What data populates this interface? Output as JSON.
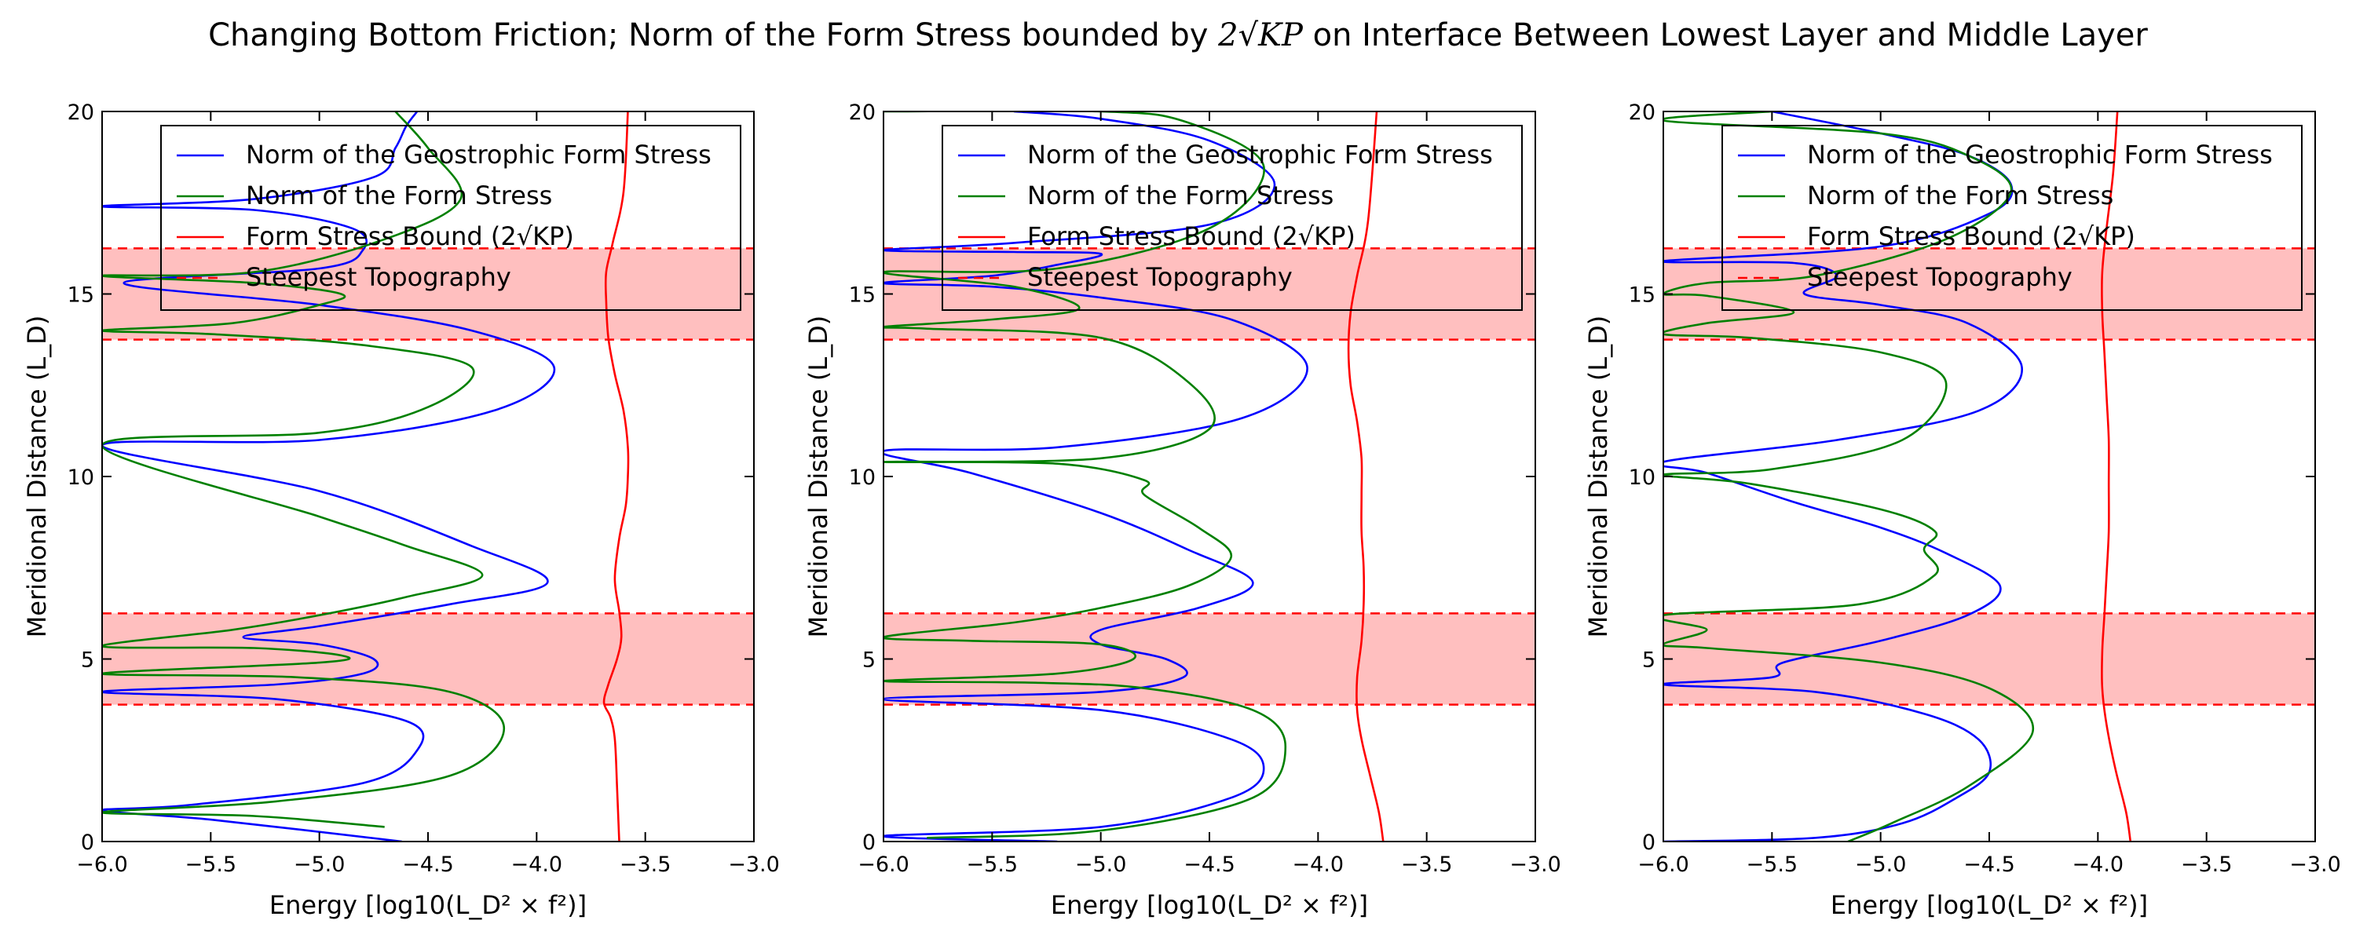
{
  "figure": {
    "title_prefix": "Changing Bottom Friction; Norm of the Form Stress bounded by ",
    "title_math": "2√KP",
    "title_suffix": " on Interface Between Lowest Layer and Middle Layer"
  },
  "colors": {
    "geostrophic": "#0000ff",
    "form_stress": "#008000",
    "bound": "#ff0000",
    "band_fill": "#ffbfbf",
    "band_edge": "#ff0000"
  },
  "chart_data": [
    {
      "type": "line",
      "title": "",
      "xlabel": "Energy [log10(L_D² × f²)]",
      "ylabel": "Meridional Distance (L_D)",
      "xlim": [
        -6.0,
        -3.0
      ],
      "ylim": [
        0,
        20
      ],
      "xticks": [
        -6.0,
        -5.5,
        -5.0,
        -4.5,
        -4.0,
        -3.5,
        -3.0
      ],
      "xtick_labels": [
        "−6.0",
        "−5.5",
        "−5.0",
        "−4.5",
        "−4.0",
        "−3.5",
        "−3.0"
      ],
      "yticks": [
        0,
        5,
        10,
        15,
        20
      ],
      "ytick_labels": [
        "0",
        "5",
        "10",
        "15",
        "20"
      ],
      "grid": false,
      "legend_position": "top-right",
      "legend": [
        "Norm of the Geostrophic Form Stress",
        "Norm of the Form Stress",
        "Form Stress Bound (2√KP)",
        "Steepest Topography"
      ],
      "bands": [
        [
          3.75,
          6.25
        ],
        [
          13.75,
          16.25
        ]
      ],
      "series": [
        {
          "name": "Norm of the Geostrophic Form Stress",
          "color": "#0000ff",
          "x": [
            -4.62,
            -5.5,
            -6.0,
            -5.6,
            -4.8,
            -4.55,
            -4.6,
            -5.2,
            -6.0,
            -5.2,
            -4.8,
            -4.75,
            -5.0,
            -5.35,
            -5.0,
            -4.4,
            -3.95,
            -4.3,
            -5.0,
            -6.0,
            -5.0,
            -4.2,
            -3.92,
            -4.3,
            -5.0,
            -5.9,
            -5.0,
            -4.8,
            -4.85,
            -5.3,
            -6.0,
            -5.3,
            -4.75,
            -4.65,
            -4.6,
            -4.55
          ],
          "y": [
            0.0,
            0.6,
            0.85,
            1.0,
            1.6,
            2.5,
            3.3,
            3.9,
            4.1,
            4.3,
            4.6,
            5.0,
            5.4,
            5.6,
            5.9,
            6.5,
            7.1,
            8.1,
            9.6,
            10.85,
            11.0,
            11.8,
            13.0,
            14.0,
            14.7,
            15.3,
            15.7,
            16.2,
            16.8,
            17.3,
            17.4,
            17.6,
            18.2,
            19.0,
            19.6,
            20.0
          ]
        },
        {
          "name": "Norm of the Form Stress",
          "color": "#008000",
          "x": [
            -4.7,
            -5.3,
            -6.0,
            -5.2,
            -4.4,
            -4.15,
            -4.4,
            -5.1,
            -6.0,
            -5.0,
            -4.9,
            -5.3,
            -6.0,
            -5.4,
            -5.0,
            -4.6,
            -4.25,
            -4.6,
            -5.0,
            -6.0,
            -5.0,
            -4.5,
            -4.3,
            -4.8,
            -5.5,
            -6.0,
            -5.4,
            -5.0,
            -4.9,
            -5.3,
            -6.0,
            -5.3,
            -4.7,
            -4.35,
            -4.5,
            -4.65
          ],
          "y": [
            0.4,
            0.7,
            0.8,
            1.1,
            1.8,
            3.1,
            4.1,
            4.5,
            4.6,
            4.9,
            5.1,
            5.3,
            5.35,
            5.8,
            6.2,
            6.7,
            7.3,
            8.1,
            8.9,
            10.85,
            11.2,
            11.9,
            13.0,
            13.6,
            13.9,
            14.0,
            14.2,
            14.7,
            15.0,
            15.3,
            15.5,
            15.6,
            16.5,
            17.6,
            19.0,
            20.0
          ]
        },
        {
          "name": "Form Stress Bound (2√KP)",
          "color": "#ff0000",
          "x": [
            -3.62,
            -3.63,
            -3.64,
            -3.66,
            -3.69,
            -3.67,
            -3.63,
            -3.61,
            -3.62,
            -3.64,
            -3.62,
            -3.59,
            -3.58,
            -3.58,
            -3.6,
            -3.64,
            -3.67,
            -3.68,
            -3.68,
            -3.65,
            -3.6,
            -3.58
          ],
          "y": [
            0.0,
            1.5,
            2.8,
            3.4,
            3.8,
            4.3,
            5.0,
            5.6,
            6.3,
            7.2,
            8.3,
            9.2,
            10.0,
            10.8,
            11.8,
            12.8,
            13.8,
            14.8,
            15.6,
            16.4,
            17.8,
            20.0
          ]
        }
      ]
    },
    {
      "type": "line",
      "title": "",
      "xlabel": "Energy [log10(L_D² × f²)]",
      "ylabel": "Meridional Distance (L_D)",
      "xlim": [
        -6.0,
        -3.0
      ],
      "ylim": [
        0,
        20
      ],
      "xticks": [
        -6.0,
        -5.5,
        -5.0,
        -4.5,
        -4.0,
        -3.5,
        -3.0
      ],
      "xtick_labels": [
        "−6.0",
        "−5.5",
        "−5.0",
        "−4.5",
        "−4.0",
        "−3.5",
        "−3.0"
      ],
      "yticks": [
        0,
        5,
        10,
        15,
        20
      ],
      "ytick_labels": [
        "0",
        "5",
        "10",
        "15",
        "20"
      ],
      "grid": false,
      "legend_position": "top-right",
      "legend": [
        "Norm of the Geostrophic Form Stress",
        "Norm of the Form Stress",
        "Form Stress Bound (2√KP)",
        "Steepest Topography"
      ],
      "bands": [
        [
          3.75,
          6.25
        ],
        [
          13.75,
          16.25
        ]
      ],
      "series": [
        {
          "name": "Norm of the Geostrophic Form Stress",
          "color": "#0000ff",
          "x": [
            -5.2,
            -6.0,
            -5.0,
            -4.4,
            -4.25,
            -4.4,
            -5.0,
            -6.0,
            -5.0,
            -4.62,
            -4.7,
            -5.0,
            -5.0,
            -4.55,
            -4.3,
            -4.6,
            -5.0,
            -5.6,
            -6.0,
            -5.2,
            -4.35,
            -4.05,
            -4.4,
            -5.0,
            -5.5,
            -6.0,
            -5.5,
            -5.2,
            -5.0,
            -5.4,
            -6.0,
            -5.4,
            -4.5,
            -4.2,
            -4.5,
            -5.0,
            -5.4
          ],
          "y": [
            0.0,
            0.15,
            0.4,
            1.2,
            2.0,
            2.8,
            3.6,
            3.9,
            4.1,
            4.5,
            5.0,
            5.4,
            5.8,
            6.4,
            7.1,
            8.0,
            9.0,
            10.1,
            10.7,
            10.8,
            11.6,
            13.0,
            14.3,
            14.9,
            15.2,
            15.3,
            15.5,
            15.8,
            16.1,
            16.15,
            16.2,
            16.4,
            16.9,
            18.0,
            19.2,
            19.8,
            20.0
          ]
        },
        {
          "name": "Norm of the Form Stress",
          "color": "#008000",
          "x": [
            -5.8,
            -5.0,
            -4.3,
            -4.15,
            -4.3,
            -4.8,
            -5.3,
            -6.0,
            -5.2,
            -4.85,
            -5.0,
            -5.6,
            -6.0,
            -5.4,
            -5.0,
            -4.6,
            -4.4,
            -4.55,
            -4.8,
            -4.8,
            -5.2,
            -6.0,
            -5.0,
            -4.5,
            -4.6,
            -5.0,
            -5.8,
            -6.0,
            -5.5,
            -5.1,
            -5.4,
            -6.0,
            -5.2,
            -4.5,
            -4.25,
            -4.6,
            -5.0,
            -6.0
          ],
          "y": [
            0.1,
            0.3,
            1.2,
            2.6,
            3.6,
            4.2,
            4.35,
            4.4,
            4.6,
            5.0,
            5.4,
            5.5,
            5.6,
            6.0,
            6.4,
            7.0,
            7.8,
            8.6,
            9.5,
            9.9,
            10.35,
            10.4,
            10.5,
            11.3,
            12.6,
            13.8,
            14.05,
            14.1,
            14.3,
            14.6,
            15.2,
            15.6,
            15.7,
            16.8,
            18.5,
            19.7,
            20.0,
            20.0
          ]
        },
        {
          "name": "Form Stress Bound (2√KP)",
          "color": "#ff0000",
          "x": [
            -3.7,
            -3.72,
            -3.76,
            -3.8,
            -3.82,
            -3.82,
            -3.8,
            -3.79,
            -3.79,
            -3.8,
            -3.8,
            -3.8,
            -3.82,
            -3.85,
            -3.86,
            -3.85,
            -3.82,
            -3.77,
            -3.73
          ],
          "y": [
            0.0,
            0.8,
            1.8,
            2.8,
            3.6,
            4.5,
            5.5,
            6.5,
            7.5,
            8.5,
            9.5,
            10.5,
            11.5,
            12.5,
            13.5,
            14.5,
            15.5,
            17.0,
            20.0
          ]
        }
      ]
    },
    {
      "type": "line",
      "title": "",
      "xlabel": "Energy [log10(L_D² × f²)]",
      "ylabel": "Meridional Distance (L_D)",
      "xlim": [
        -6.0,
        -3.0
      ],
      "ylim": [
        0,
        20
      ],
      "xticks": [
        -6.0,
        -5.5,
        -5.0,
        -4.5,
        -4.0,
        -3.5,
        -3.0
      ],
      "xtick_labels": [
        "−6.0",
        "−5.5",
        "−5.0",
        "−4.5",
        "−4.0",
        "−3.5",
        "−3.0"
      ],
      "yticks": [
        0,
        5,
        10,
        15,
        20
      ],
      "ytick_labels": [
        "0",
        "5",
        "10",
        "15",
        "20"
      ],
      "grid": false,
      "legend_position": "top-right",
      "legend": [
        "Norm of the Geostrophic Form Stress",
        "Norm of the Form Stress",
        "Form Stress Bound (2√KP)",
        "Steepest Topography"
      ],
      "bands": [
        [
          3.75,
          6.25
        ],
        [
          13.75,
          16.25
        ]
      ],
      "series": [
        {
          "name": "Norm of the Geostrophic Form Stress",
          "color": "#0000ff",
          "x": [
            -6.0,
            -5.3,
            -4.9,
            -4.65,
            -4.5,
            -4.55,
            -4.8,
            -5.3,
            -6.0,
            -5.5,
            -5.45,
            -5.0,
            -4.6,
            -4.45,
            -4.7,
            -5.0,
            -5.4,
            -5.8,
            -6.0,
            -5.2,
            -4.55,
            -4.35,
            -4.6,
            -5.0,
            -5.35,
            -5.2,
            -5.4,
            -6.0,
            -5.0,
            -4.5,
            -4.4,
            -4.6,
            -5.0,
            -5.5
          ],
          "y": [
            0.0,
            0.1,
            0.5,
            1.2,
            1.9,
            2.8,
            3.5,
            4.1,
            4.3,
            4.5,
            4.9,
            5.5,
            6.2,
            7.0,
            7.9,
            8.6,
            9.3,
            10.1,
            10.4,
            11.0,
            11.8,
            13.0,
            14.2,
            14.7,
            15.0,
            15.5,
            15.85,
            15.9,
            16.3,
            17.2,
            18.0,
            18.8,
            19.4,
            20.0
          ]
        },
        {
          "name": "Norm of the Form Stress",
          "color": "#008000",
          "x": [
            -5.15,
            -4.95,
            -4.6,
            -4.3,
            -4.5,
            -5.0,
            -5.8,
            -6.0,
            -5.8,
            -6.0,
            -5.1,
            -4.75,
            -4.8,
            -4.75,
            -5.0,
            -5.6,
            -6.0,
            -5.5,
            -4.9,
            -4.7,
            -5.0,
            -5.6,
            -6.0,
            -5.8,
            -5.4,
            -5.8,
            -6.0,
            -5.8,
            -5.3,
            -4.7,
            -4.4,
            -4.6,
            -5.0,
            -6.0,
            -5.5
          ],
          "y": [
            0.0,
            0.5,
            1.5,
            3.0,
            4.2,
            4.9,
            5.3,
            5.4,
            5.8,
            6.2,
            6.5,
            7.3,
            8.0,
            8.5,
            9.1,
            9.8,
            10.05,
            10.2,
            11.0,
            12.6,
            13.4,
            13.8,
            13.9,
            14.2,
            14.5,
            14.95,
            15.0,
            15.3,
            15.5,
            16.5,
            17.8,
            18.8,
            19.4,
            19.75,
            20.0
          ]
        },
        {
          "name": "Form Stress Bound (2√KP)",
          "color": "#ff0000",
          "x": [
            -3.85,
            -3.87,
            -3.92,
            -3.96,
            -3.98,
            -3.98,
            -3.97,
            -3.96,
            -3.95,
            -3.95,
            -3.95,
            -3.96,
            -3.97,
            -3.98,
            -3.98,
            -3.96,
            -3.93,
            -3.91
          ],
          "y": [
            0.0,
            0.8,
            2.0,
            3.2,
            4.2,
            5.2,
            6.2,
            7.3,
            8.5,
            9.8,
            11.0,
            12.2,
            13.4,
            14.5,
            15.6,
            16.8,
            18.3,
            20.0
          ]
        }
      ]
    }
  ]
}
